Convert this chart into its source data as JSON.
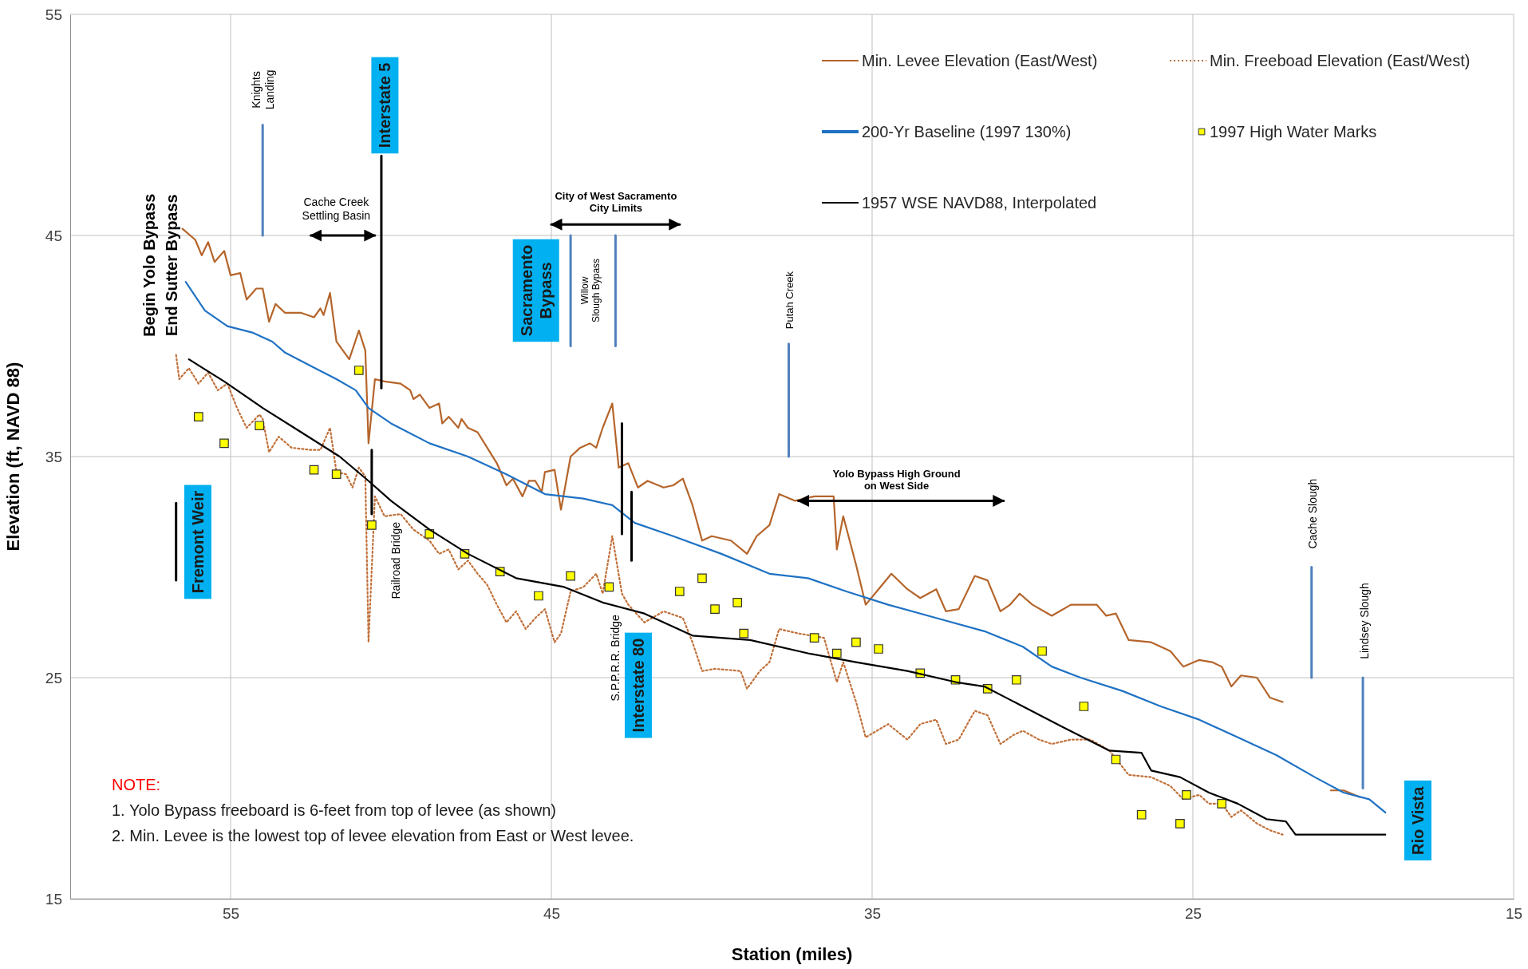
{
  "chart_data": {
    "type": "line",
    "xlabel": "Station (miles)",
    "ylabel": "Elevation (ft, NAVD 88)",
    "xlim": [
      60,
      15
    ],
    "ylim": [
      15,
      55
    ],
    "xticks": [
      55,
      45,
      35,
      25,
      15
    ],
    "yticks": [
      15,
      25,
      35,
      45,
      55
    ],
    "grid": true,
    "legend": "top right",
    "series": [
      {
        "name": "Min. Levee Elevation (East/West)",
        "color": "#b5652b",
        "line_style": "solid",
        "x": [
          56.5,
          56.1,
          55.9,
          55.7,
          55.5,
          55.2,
          55.0,
          54.7,
          54.5,
          54.2,
          54.0,
          53.8,
          53.6,
          53.3,
          52.8,
          52.4,
          52.2,
          52.1,
          51.9,
          51.7,
          51.3,
          51.0,
          50.8,
          50.7,
          50.5,
          50.2,
          49.7,
          49.4,
          49.3,
          49.1,
          48.8,
          48.5,
          48.4,
          48.2,
          47.9,
          47.8,
          47.6,
          47.3,
          47.0,
          46.7,
          46.4,
          46.2,
          45.9,
          45.7,
          45.5,
          45.3,
          45.2,
          44.9,
          44.7,
          44.4,
          44.1,
          43.8,
          43.6,
          43.4,
          43.1,
          42.9,
          42.6,
          42.3,
          42.0,
          41.5,
          41.2,
          40.9,
          40.6,
          40.3,
          40.0,
          39.4,
          38.9,
          38.6,
          38.2,
          37.9,
          37.4,
          36.8,
          36.2,
          36.1,
          35.9,
          35.5,
          35.2,
          34.8,
          34.4,
          33.9,
          33.5,
          33.0,
          32.7,
          32.3,
          31.8,
          31.4,
          31.0,
          30.7,
          30.4,
          30.0,
          29.4,
          28.8,
          28.0,
          27.7,
          27.4,
          27.0,
          26.3,
          25.7,
          25.3,
          24.8,
          24.4,
          24.1,
          23.8,
          23.5,
          23.0,
          22.6,
          22.2,
          21.5,
          20.7,
          20.3,
          19.8
        ],
        "values": [
          45.3,
          44.8,
          44.1,
          44.7,
          43.8,
          44.3,
          43.2,
          43.3,
          42.1,
          42.6,
          42.6,
          41.1,
          41.9,
          41.5,
          41.5,
          41.3,
          41.7,
          41.4,
          42.4,
          40.2,
          39.4,
          40.7,
          39.8,
          35.6,
          38.5,
          38.4,
          38.3,
          38.0,
          37.6,
          37.8,
          37.2,
          37.4,
          36.5,
          36.8,
          36.3,
          36.7,
          36.3,
          36.1,
          35.4,
          34.7,
          33.7,
          34.0,
          33.2,
          33.9,
          33.9,
          33.4,
          34.3,
          34.4,
          32.6,
          35.0,
          35.4,
          35.6,
          35.4,
          36.3,
          37.4,
          34.5,
          34.7,
          33.6,
          33.9,
          33.6,
          33.7,
          34.0,
          32.8,
          31.2,
          31.4,
          31.2,
          30.6,
          31.4,
          31.9,
          33.3,
          33.0,
          33.2,
          33.2,
          30.8,
          32.3,
          30.1,
          28.3,
          29.0,
          29.7,
          29.0,
          28.6,
          29.0,
          28.0,
          28.1,
          29.6,
          29.4,
          28.0,
          28.3,
          28.8,
          28.3,
          27.8,
          28.3,
          28.3,
          27.8,
          27.9,
          26.7,
          26.6,
          26.2,
          25.5,
          25.8,
          25.7,
          25.5,
          24.6,
          25.1,
          25.0,
          24.1,
          23.9,
          null,
          19.9,
          19.9,
          19.6
        ]
      },
      {
        "name": "Min. Freeboad Elevation (East/West)",
        "color": "#c0703a",
        "line_style": "dotted",
        "x": [
          56.7,
          56.6,
          56.3,
          56.0,
          55.7,
          55.4,
          55.1,
          54.8,
          54.5,
          54.1,
          54.0,
          53.8,
          53.5,
          53.1,
          52.5,
          52.2,
          51.9,
          51.7,
          51.4,
          51.2,
          51.0,
          50.8,
          50.7,
          50.5,
          50.2,
          49.7,
          49.3,
          48.8,
          48.5,
          48.2,
          47.9,
          47.6,
          47.3,
          47.0,
          46.7,
          46.4,
          46.1,
          45.8,
          45.5,
          45.2,
          44.9,
          44.7,
          44.4,
          44.0,
          43.6,
          43.4,
          43.1,
          42.8,
          42.6,
          42.1,
          41.5,
          40.9,
          40.6,
          40.3,
          39.9,
          39.1,
          38.9,
          38.5,
          38.2,
          37.9,
          37.3,
          36.5,
          36.1,
          35.9,
          35.5,
          35.2,
          34.5,
          33.9,
          33.5,
          33.0,
          32.7,
          32.3,
          31.8,
          31.4,
          31.0,
          30.6,
          30.3,
          29.8,
          29.4,
          28.8,
          28.2,
          27.6,
          27.0,
          26.3,
          25.7,
          25.3,
          24.8,
          24.5,
          24.1,
          23.8,
          23.5,
          23.0,
          22.6,
          22.2
        ],
        "values": [
          39.6,
          38.5,
          39.0,
          38.3,
          38.8,
          38.0,
          38.3,
          37.2,
          36.3,
          36.9,
          36.7,
          35.2,
          35.9,
          35.4,
          35.3,
          35.3,
          36.3,
          34.3,
          34.2,
          33.6,
          34.5,
          34.1,
          26.6,
          33.2,
          32.3,
          32.4,
          31.7,
          31.2,
          30.6,
          30.8,
          29.9,
          30.3,
          29.7,
          29.2,
          28.3,
          27.5,
          28.0,
          27.2,
          27.7,
          28.1,
          26.6,
          27.0,
          28.9,
          29.1,
          29.7,
          28.8,
          31.4,
          28.8,
          28.3,
          27.5,
          28.0,
          27.7,
          26.6,
          25.3,
          25.4,
          25.3,
          24.5,
          25.3,
          25.7,
          27.2,
          27.0,
          26.8,
          24.8,
          25.7,
          23.9,
          22.3,
          22.9,
          22.2,
          22.9,
          23.1,
          22.0,
          22.2,
          23.5,
          23.3,
          22.0,
          22.4,
          22.6,
          22.2,
          22.0,
          22.2,
          22.2,
          21.7,
          20.6,
          20.5,
          20.1,
          19.5,
          19.7,
          19.3,
          19.3,
          18.7,
          19.0,
          18.4,
          18.1,
          17.9
        ]
      },
      {
        "name": "200-Yr Baseline (1997 130%)",
        "color": "#1f72c4",
        "line_style": "solid",
        "x": [
          56.4,
          55.8,
          55.1,
          54.3,
          53.7,
          53.3,
          52.5,
          51.7,
          51.1,
          50.7,
          50.0,
          48.8,
          47.6,
          46.4,
          45.2,
          44.0,
          43.1,
          42.4,
          41.2,
          39.7,
          38.2,
          37.0,
          35.8,
          34.5,
          33.0,
          31.5,
          30.3,
          29.4,
          28.5,
          27.2,
          26.0,
          24.8,
          23.6,
          22.4,
          21.2,
          20.3,
          19.5,
          19.0
        ],
        "values": [
          42.9,
          41.6,
          40.9,
          40.6,
          40.2,
          39.7,
          39.1,
          38.5,
          38.0,
          37.2,
          36.5,
          35.6,
          35.0,
          34.2,
          33.3,
          33.1,
          32.8,
          32.0,
          31.4,
          30.6,
          29.7,
          29.5,
          28.9,
          28.3,
          27.7,
          27.1,
          26.4,
          25.5,
          25.0,
          24.4,
          23.7,
          23.1,
          22.3,
          21.5,
          20.5,
          19.8,
          19.5,
          18.9
        ]
      },
      {
        "name": "1997 High Water Marks",
        "color": "#ffff00",
        "type": "scatter",
        "marker": "square",
        "x": [
          56.0,
          55.2,
          54.1,
          52.4,
          51.7,
          51.0,
          50.6,
          48.8,
          47.7,
          46.6,
          45.4,
          44.4,
          43.2,
          41.0,
          40.3,
          39.9,
          39.2,
          39.0,
          36.8,
          36.1,
          35.5,
          34.8,
          33.5,
          32.4,
          31.4,
          30.5,
          29.7,
          28.4,
          27.4,
          26.6,
          25.4,
          25.2,
          24.1
        ],
        "values": [
          36.8,
          35.6,
          36.4,
          34.4,
          34.2,
          38.9,
          31.9,
          31.5,
          30.6,
          29.8,
          28.7,
          29.6,
          29.1,
          28.9,
          29.5,
          28.1,
          28.4,
          27.0,
          26.8,
          26.1,
          26.6,
          26.3,
          25.2,
          24.9,
          24.5,
          24.9,
          26.2,
          23.7,
          21.3,
          18.8,
          18.4,
          19.7,
          19.3
        ]
      },
      {
        "name": "1957 WSE NAVD88, Interpolated",
        "color": "#000000",
        "line_style": "solid",
        "x": [
          56.3,
          55.2,
          54.0,
          52.8,
          51.6,
          50.7,
          50.0,
          48.8,
          47.6,
          46.1,
          44.6,
          43.4,
          42.1,
          40.6,
          38.8,
          37.0,
          35.5,
          33.9,
          32.4,
          31.5,
          30.3,
          29.1,
          27.6,
          26.6,
          26.3,
          25.4,
          24.5,
          23.6,
          22.7,
          22.1,
          21.8,
          19.0
        ],
        "values": [
          39.4,
          38.4,
          37.2,
          36.1,
          35.0,
          33.9,
          33.0,
          31.7,
          30.6,
          29.5,
          29.1,
          28.4,
          27.9,
          26.9,
          26.7,
          26.1,
          25.7,
          25.3,
          24.8,
          24.6,
          23.7,
          22.8,
          21.7,
          21.6,
          20.8,
          20.5,
          19.8,
          19.3,
          18.6,
          18.5,
          17.9,
          17.9
        ]
      },
      {
        "color": "#4f81bd",
        "x": [
          54.0,
          54.0
        ],
        "values": [
          45,
          50
        ]
      },
      {
        "color": "#4f81bd",
        "x": [
          44.4,
          44.4
        ],
        "values": [
          40,
          45
        ]
      },
      {
        "color": "#4f81bd",
        "x": [
          43.0,
          43.0
        ],
        "values": [
          40,
          45
        ]
      },
      {
        "color": "#4f81bd",
        "x": [
          37.6,
          37.6
        ],
        "values": [
          35,
          40.1
        ]
      },
      {
        "color": "#4f81bd",
        "x": [
          21.3,
          21.3
        ],
        "values": [
          25,
          30
        ]
      },
      {
        "color": "#4f81bd",
        "x": [
          19.7,
          19.7
        ],
        "values": [
          20,
          25
        ]
      },
      {
        "color": "#000000",
        "x": [
          50.3,
          50.3
        ],
        "values": [
          38.1,
          48.6
        ]
      },
      {
        "color": "#000000",
        "x": [
          50.6,
          50.6
        ],
        "values": [
          32.4,
          35.3
        ]
      },
      {
        "color": "#000000",
        "x": [
          42.8,
          42.8
        ],
        "values": [
          31.5,
          36.5
        ]
      },
      {
        "color": "#000000",
        "x": [
          42.5,
          42.5
        ],
        "values": [
          30.3,
          33.4
        ]
      },
      {
        "color": "#000000",
        "x": [
          56.7,
          56.7
        ],
        "values": [
          29.4,
          32.9
        ]
      },
      {
        "color": "#000000",
        "x": [
          52.5,
          50.5
        ],
        "values": [
          45,
          45
        ]
      },
      {
        "color": "#000000",
        "x": [
          45,
          41
        ],
        "values": [
          45.5,
          45.5
        ]
      },
      {
        "color": "#000000",
        "x": [
          37.3,
          30.9
        ],
        "values": [
          33,
          33
        ]
      }
    ],
    "annotations": [
      "Knights Landing",
      "Interstate 5",
      "Cache Creek Settling Basin",
      "City of West Sacramento City Limits",
      "Sacramento Bypass",
      "Willow Slough Bypass",
      "Putah Creek",
      "Begin Yolo Bypass",
      "End Sutter Bypass",
      "Fremont Weir",
      "Railroad Bridge",
      "Yolo Bypass High Ground on West Side",
      "S.P.P.R.R. Bridge",
      "Interstate 80",
      "Cache Slough",
      "Lindsey Slough",
      "Rio Vista",
      "NOTE:",
      "1. Yolo Bypass freeboard is 6-feet from top of levee (as shown)",
      "2. Min. Levee is the lowest top of levee elevation from East or West levee."
    ]
  }
}
